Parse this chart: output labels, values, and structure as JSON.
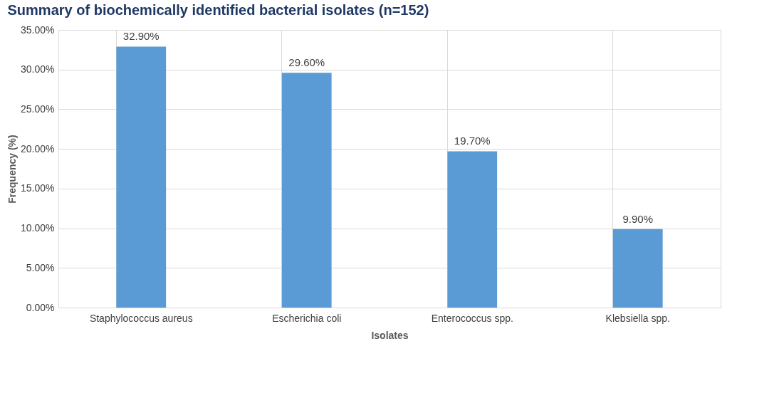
{
  "chart_data": {
    "type": "bar",
    "title": "Summary of biochemically identified bacterial isolates (n=152)",
    "xlabel": "Isolates",
    "ylabel": "Frequency (%)",
    "categories": [
      "Staphylococcus aureus",
      "Escherichia coli",
      "Enterococcus spp.",
      "Klebsiella spp."
    ],
    "values": [
      32.9,
      29.6,
      19.7,
      9.9
    ],
    "value_labels": [
      "32.90%",
      "29.60%",
      "19.70%",
      "9.90%"
    ],
    "color": "#5b9bd5",
    "ylim": [
      0,
      35
    ],
    "yticks": [
      {
        "value": 0,
        "label": "0.00%"
      },
      {
        "value": 5,
        "label": "5.00%"
      },
      {
        "value": 10,
        "label": "10.00%"
      },
      {
        "value": 15,
        "label": "15.00%"
      },
      {
        "value": 20,
        "label": "20.00%"
      },
      {
        "value": 25,
        "label": "25.00%"
      },
      {
        "value": 30,
        "label": "30.00%"
      },
      {
        "value": 35,
        "label": "35.00%"
      }
    ],
    "grid": true
  }
}
